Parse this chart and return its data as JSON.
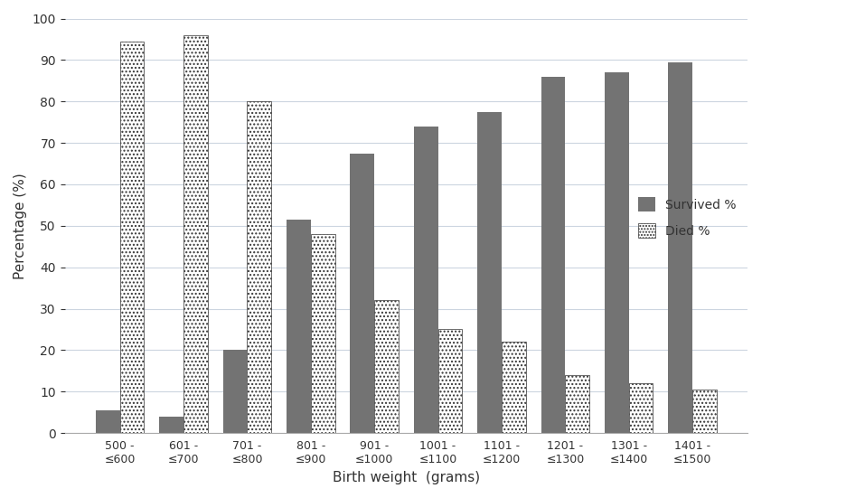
{
  "categories": [
    "500 -\n≤600",
    "601 -\n≤700",
    "701 -\n≤800",
    "801 -\n≤900",
    "901 -\n≤1000",
    "1001 -\n≤1100",
    "1101 -\n≤1200",
    "1201 -\n≤1300",
    "1301 -\n≤1400",
    "1401 -\n≤1500"
  ],
  "survived": [
    5.5,
    4.0,
    20.0,
    51.5,
    67.5,
    74.0,
    77.5,
    86.0,
    87.0,
    89.5
  ],
  "died": [
    94.5,
    96.0,
    80.0,
    48.0,
    32.0,
    25.0,
    22.0,
    14.0,
    12.0,
    10.5
  ],
  "survived_color": "#737373",
  "died_hatch_color": "#333333",
  "died_bg_color": "#ffffff",
  "ylabel": "Percentage (%)",
  "xlabel": "Birth weight  (grams)",
  "ylim": [
    0,
    100
  ],
  "yticks": [
    0,
    10,
    20,
    30,
    40,
    50,
    60,
    70,
    80,
    90,
    100
  ],
  "legend_survived": "Survived %",
  "legend_died": "Died %",
  "bar_width": 0.38,
  "background_color": "#ffffff",
  "grid_color": "#ccd5e0"
}
